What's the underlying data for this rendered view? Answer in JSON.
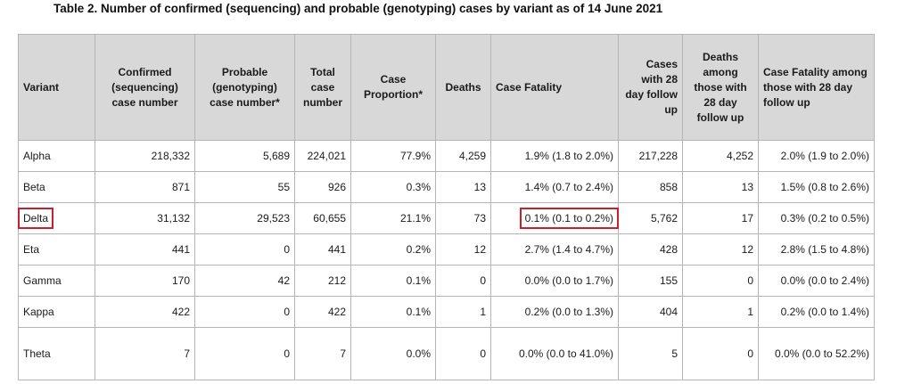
{
  "title": "Table 2. Number of confirmed (sequencing) and probable (genotyping) cases by variant as of 14 June 2021",
  "headers": [
    "Variant",
    "Confirmed (sequencing) case number",
    "Probable (genotyping) case number*",
    "Total case number",
    "Case Proportion*",
    "Deaths",
    "Case Fatality",
    "Cases with 28 day follow up",
    "Deaths among those with 28 day follow up",
    "Case Fatality among those with 28 day follow up"
  ],
  "rows": [
    {
      "variant": "Alpha",
      "confirmed": "218,332",
      "probable": "5,689",
      "total": "224,021",
      "proportion": "77.9%",
      "deaths": "4,259",
      "fatality": "1.9% (1.8 to 2.0%)",
      "cases28": "217,228",
      "deaths28": "4,252",
      "fatality28": "2.0% (1.9 to 2.0%)"
    },
    {
      "variant": "Beta",
      "confirmed": "871",
      "probable": "55",
      "total": "926",
      "proportion": "0.3%",
      "deaths": "13",
      "fatality": "1.4% (0.7 to 2.4%)",
      "cases28": "858",
      "deaths28": "13",
      "fatality28": "1.5% (0.8 to 2.6%)"
    },
    {
      "variant": "Delta",
      "confirmed": "31,132",
      "probable": "29,523",
      "total": "60,655",
      "proportion": "21.1%",
      "deaths": "73",
      "fatality": "0.1% (0.1 to 0.2%)",
      "cases28": "5,762",
      "deaths28": "17",
      "fatality28": "0.3% (0.2 to 0.5%)"
    },
    {
      "variant": "Eta",
      "confirmed": "441",
      "probable": "0",
      "total": "441",
      "proportion": "0.2%",
      "deaths": "12",
      "fatality": "2.7% (1.4 to 4.7%)",
      "cases28": "428",
      "deaths28": "12",
      "fatality28": "2.8% (1.5 to 4.8%)"
    },
    {
      "variant": "Gamma",
      "confirmed": "170",
      "probable": "42",
      "total": "212",
      "proportion": "0.1%",
      "deaths": "0",
      "fatality": "0.0% (0.0 to 1.7%)",
      "cases28": "155",
      "deaths28": "0",
      "fatality28": "0.0% (0.0 to 2.4%)"
    },
    {
      "variant": "Kappa",
      "confirmed": "422",
      "probable": "0",
      "total": "422",
      "proportion": "0.1%",
      "deaths": "1",
      "fatality": "0.2% (0.0 to 1.3%)",
      "cases28": "404",
      "deaths28": "1",
      "fatality28": "0.2% (0.0 to 1.4%)"
    },
    {
      "variant": "Theta",
      "confirmed": "7",
      "probable": "0",
      "total": "7",
      "proportion": "0.0%",
      "deaths": "0",
      "fatality": "0.0% (0.0 to 41.0%)",
      "cases28": "5",
      "deaths28": "0",
      "fatality28": "0.0% (0.0 to 52.2%)"
    }
  ],
  "highlight_color": "#cc1f2c",
  "header_bg": "#d8d8d8"
}
